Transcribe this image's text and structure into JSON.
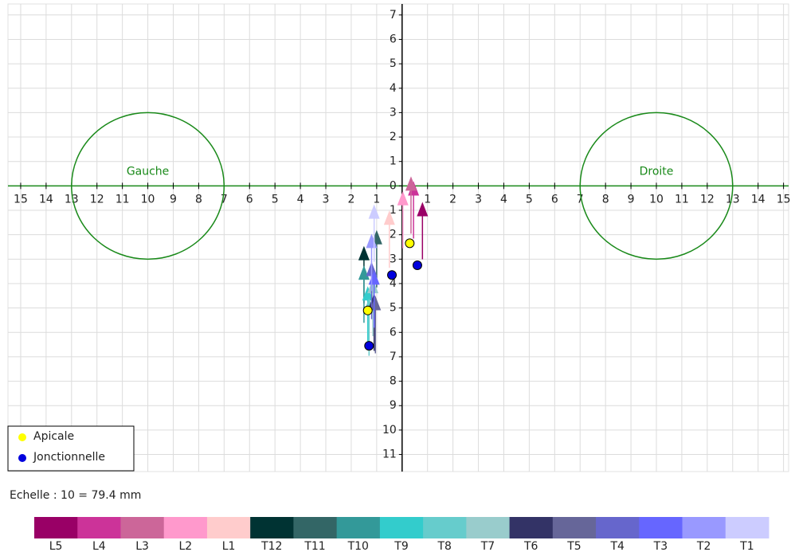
{
  "chart_data": {
    "type": "scatter",
    "xlim": [
      -15.5,
      15.2
    ],
    "ylim": [
      -11.7,
      7.45
    ],
    "grid": true,
    "xticks": [
      {
        "value": -15,
        "label": "15"
      },
      {
        "value": -14,
        "label": "14"
      },
      {
        "value": -13,
        "label": "13"
      },
      {
        "value": -12,
        "label": "12"
      },
      {
        "value": -11,
        "label": "11"
      },
      {
        "value": -10,
        "label": "10"
      },
      {
        "value": -9,
        "label": "9"
      },
      {
        "value": -8,
        "label": "8"
      },
      {
        "value": -7,
        "label": "7"
      },
      {
        "value": -6,
        "label": "6"
      },
      {
        "value": -5,
        "label": "5"
      },
      {
        "value": -4,
        "label": "4"
      },
      {
        "value": -3,
        "label": "3"
      },
      {
        "value": -2,
        "label": "2"
      },
      {
        "value": -1,
        "label": "1"
      },
      1,
      2,
      3,
      4,
      5,
      6,
      7,
      8,
      9,
      10,
      11,
      12,
      13,
      14,
      15
    ],
    "yticks": [
      7,
      6,
      5,
      4,
      3,
      2,
      1,
      0,
      {
        "value": -1,
        "label": "1"
      },
      {
        "value": -2,
        "label": "2"
      },
      {
        "value": -3,
        "label": "3"
      },
      {
        "value": -4,
        "label": "4"
      },
      {
        "value": -5,
        "label": "5"
      },
      {
        "value": -6,
        "label": "6"
      },
      {
        "value": -7,
        "label": "7"
      },
      {
        "value": -8,
        "label": "8"
      },
      {
        "value": -9,
        "label": "9"
      },
      {
        "value": -10,
        "label": "10"
      },
      {
        "value": -11,
        "label": "11"
      }
    ],
    "circles": [
      {
        "label": "Gauche",
        "x": -10,
        "y": 0,
        "r": 3,
        "color": "#1a8a1a"
      },
      {
        "label": "Droite",
        "x": 10,
        "y": 0,
        "r": 3,
        "color": "#1a8a1a"
      }
    ],
    "series": [
      {
        "name": "L5",
        "color": "#990066",
        "x": 0.8,
        "y": -1.05
      },
      {
        "name": "L4",
        "color": "#cc3399",
        "x": 0.45,
        "y": -0.2
      },
      {
        "name": "L3",
        "color": "#cc6699",
        "x": 0.35,
        "y": 0
      },
      {
        "name": "L2",
        "color": "#ff99cc",
        "x": 0.03,
        "y": -0.6
      },
      {
        "name": "L1",
        "color": "#ffcccc",
        "x": -0.5,
        "y": -1.4
      },
      {
        "name": "T12",
        "color": "#003333",
        "x": -1.5,
        "y": -2.85
      },
      {
        "name": "T11",
        "color": "#336666",
        "x": -1.0,
        "y": -2.2
      },
      {
        "name": "T10",
        "color": "#339999",
        "x": -1.5,
        "y": -3.65
      },
      {
        "name": "T9",
        "color": "#33cccc",
        "x": -1.35,
        "y": -4.5
      },
      {
        "name": "T8",
        "color": "#66cccc",
        "x": -1.3,
        "y": -5.0
      },
      {
        "name": "T7",
        "color": "#99cccc",
        "x": -1.15,
        "y": -4.2
      },
      {
        "name": "T6",
        "color": "#333366",
        "x": -1.1,
        "y": -4.8
      },
      {
        "name": "T5",
        "color": "#666699",
        "x": -1.05,
        "y": -4.9
      },
      {
        "name": "T4",
        "color": "#6666cc",
        "x": -1.2,
        "y": -3.5
      },
      {
        "name": "T3",
        "color": "#6666ff",
        "x": -1.1,
        "y": -3.85
      },
      {
        "name": "T2",
        "color": "#9999ff",
        "x": -1.2,
        "y": -2.35
      },
      {
        "name": "T1",
        "color": "#ccccff",
        "x": -1.1,
        "y": -1.15
      }
    ],
    "points": [
      {
        "name": "Apicale",
        "color": "#ffff00",
        "x": [
          0.3,
          -1.35
        ],
        "y": [
          -2.35,
          -5.1
        ]
      },
      {
        "name": "Jonctionnelle",
        "color": "#0000dd",
        "x": [
          0.6,
          -0.4,
          -1.3
        ],
        "y": [
          -3.25,
          -3.65,
          -6.55
        ]
      }
    ],
    "scale_note": "Echelle : 10 = 79.4 mm"
  }
}
